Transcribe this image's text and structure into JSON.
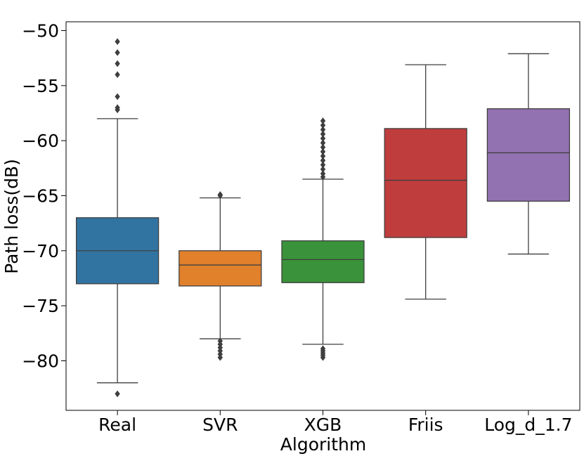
{
  "chart_data": {
    "type": "box",
    "xlabel": "Algorithm",
    "ylabel": "Path loss(dB)",
    "ylim": [
      -84.5,
      -49.2
    ],
    "yticks": [
      -50,
      -55,
      -60,
      -65,
      -70,
      -75,
      -80
    ],
    "ytick_labels": [
      "−50",
      "−55",
      "−60",
      "−65",
      "−70",
      "−75",
      "−80"
    ],
    "grid": false,
    "categories": [
      "Real",
      "SVR",
      "XGB",
      "Friis",
      "Log_d_1.7"
    ],
    "boxes": [
      {
        "category": "Real",
        "color": "#3274a1",
        "q1": -73.0,
        "median": -70.0,
        "q3": -67.0,
        "whisker_low": -82.0,
        "whisker_high": -58.0,
        "outliers": [
          -51.0,
          -52.0,
          -53.0,
          -54.0,
          -56.0,
          -57.0,
          -57.2,
          -83.0
        ]
      },
      {
        "category": "SVR",
        "color": "#e1812c",
        "q1": -73.2,
        "median": -71.3,
        "q3": -70.0,
        "whisker_low": -78.0,
        "whisker_high": -65.2,
        "outliers": [
          -64.9,
          -65.0,
          -78.2,
          -78.5,
          -78.8,
          -79.1,
          -79.4,
          -79.7
        ]
      },
      {
        "category": "XGB",
        "color": "#3a923a",
        "q1": -72.9,
        "median": -70.8,
        "q3": -69.1,
        "whisker_low": -78.5,
        "whisker_high": -63.5,
        "outliers": [
          -58.2,
          -58.6,
          -59.0,
          -59.4,
          -59.8,
          -60.2,
          -60.6,
          -61.0,
          -61.4,
          -61.8,
          -62.2,
          -62.6,
          -63.0,
          -63.3,
          -78.9,
          -79.1,
          -79.3,
          -79.5,
          -79.7
        ]
      },
      {
        "category": "Friis",
        "color": "#c03d3e",
        "q1": -68.8,
        "median": -63.6,
        "q3": -58.9,
        "whisker_low": -74.4,
        "whisker_high": -53.1,
        "outliers": []
      },
      {
        "category": "Log_d_1.7",
        "color": "#9372b2",
        "q1": -65.5,
        "median": -61.1,
        "q3": -57.1,
        "whisker_low": -70.3,
        "whisker_high": -52.1,
        "outliers": []
      }
    ],
    "box_edge_color": "#3f3f3f"
  }
}
